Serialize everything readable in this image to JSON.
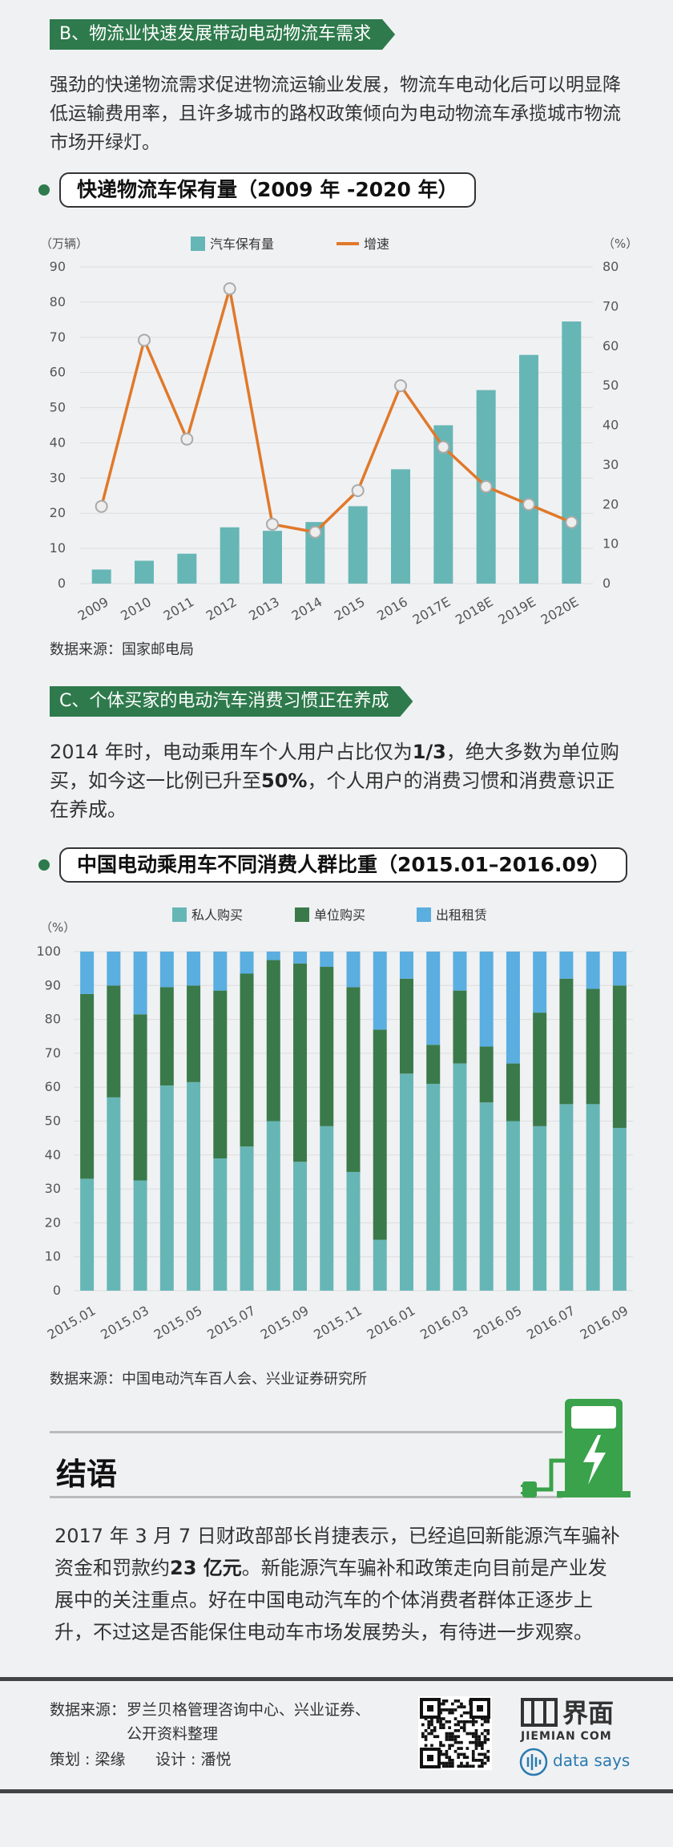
{
  "sectionB": {
    "tag": "B、物流业快速发展带动电动物流车需求",
    "para": "强劲的快递物流需求促进物流运输业发展，物流车电动化后可以明显降低运输费用率，且许多城市的路权政策倾向为电动物流车承揽城市物流市场开绿灯。"
  },
  "chart1": {
    "title": "快递物流车保有量（2009 年 -2020 年）",
    "left_unit": "（万辆）",
    "right_unit": "（%）",
    "source": "数据来源：国家邮电局"
  },
  "sectionC": {
    "tag": "C、个体买家的电动汽车消费习惯正在养成",
    "para_pre": "2014 年时，电动乘用车个人用户占比仅为",
    "para_b1": "1/3",
    "para_mid": "，绝大多数为单位购买，如今这一比例已升至",
    "para_b2": "50%",
    "para_post": "，个人用户的消费习惯和消费意识正在养成。"
  },
  "chart2": {
    "title": "中国电动乘用车不同消费人群比重（2015.01–2016.09）",
    "unit": "（%）",
    "source": "数据来源：中国电动汽车百人会、兴业证券研究所"
  },
  "conclusion": {
    "title": "结语",
    "para_pre": "2017 年 3 月 7 日财政部部长肖捷表示，已经追回新能源汽车骗补资金和罚款约",
    "para_b": "23 亿元",
    "para_post": "。新能源汽车骗补和政策走向目前是产业发展中的关注重点。好在中国电动汽车的个体消费者群体正逐步上升，不过这是否能保住电动车市场发展势头，有待进一步观察。"
  },
  "footer": {
    "source_label": "数据来源：",
    "source_line1": "罗兰贝格管理咨询中心、兴业证券、",
    "source_line2": "公开资料整理",
    "plan": "策划 : 梁缘",
    "design": "设计 : 潘悦",
    "brand_cn": "界面",
    "brand_en": "JIEMIAN COM",
    "datasays": "data says"
  },
  "colors": {
    "green_dark": "#2e7a4c",
    "teal": "#67b6b6",
    "orange": "#e0792a",
    "blue": "#5aaee0",
    "unit_green": "#3a7a4a"
  },
  "chart_data": [
    {
      "type": "bar+line",
      "categories": [
        "2009",
        "2010",
        "2011",
        "2012",
        "2013",
        "2014",
        "2015",
        "2016",
        "2017E",
        "2018E",
        "2019E",
        "2020E"
      ],
      "series": [
        {
          "name": "汽车保有量",
          "axis": "left",
          "type": "bar",
          "values": [
            4,
            6.5,
            8.5,
            16,
            15,
            17.5,
            22,
            32.5,
            45,
            55,
            65,
            74.5
          ]
        },
        {
          "name": "增速",
          "axis": "right",
          "type": "line",
          "values": [
            19.5,
            61.5,
            36.5,
            74.5,
            15,
            13,
            23.5,
            50,
            34.5,
            24.5,
            20,
            15.5
          ]
        }
      ],
      "yleft": {
        "min": 0,
        "max": 90,
        "ticks": [
          0,
          10,
          20,
          30,
          40,
          50,
          60,
          70,
          80,
          90
        ]
      },
      "yright": {
        "min": 0,
        "max": 80,
        "ticks": [
          0,
          10,
          20,
          30,
          40,
          50,
          60,
          70,
          80
        ]
      },
      "legend_placement": "top-center"
    },
    {
      "type": "stacked-bar",
      "categories": [
        "2015.01",
        "2015.02",
        "2015.03",
        "2015.04",
        "2015.05",
        "2015.06",
        "2015.07",
        "2015.08",
        "2015.09",
        "2015.10",
        "2015.11",
        "2015.12",
        "2016.01",
        "2016.02",
        "2016.03",
        "2016.04",
        "2016.05",
        "2016.06",
        "2016.07",
        "2016.08",
        "2016.09"
      ],
      "tick_labels": [
        "2015.01",
        "2015.03",
        "2015.05",
        "2015.07",
        "2015.09",
        "2015.11",
        "2016.01",
        "2016.03",
        "2016.05",
        "2016.07",
        "2016.09"
      ],
      "series": [
        {
          "name": "私人购买",
          "values": [
            33,
            57,
            32.5,
            60.5,
            61.5,
            39,
            42.5,
            50,
            38,
            48.5,
            35,
            15,
            64,
            61,
            67,
            55.5,
            50,
            48.5,
            55,
            55,
            48
          ]
        },
        {
          "name": "单位购买",
          "values": [
            54.5,
            33,
            49,
            29,
            28.5,
            49.5,
            51,
            47.5,
            58.5,
            47,
            54.5,
            62,
            28,
            11.5,
            21.5,
            16.5,
            17,
            33.5,
            37,
            34,
            42
          ]
        },
        {
          "name": "出租租赁",
          "values": [
            12.5,
            10,
            18.5,
            10.5,
            10,
            11.5,
            6.5,
            2.5,
            3.5,
            4.5,
            10.5,
            23,
            8,
            27.5,
            11.5,
            28,
            33,
            18,
            8,
            11,
            10
          ]
        }
      ],
      "ylim": [
        0,
        100
      ],
      "yticks": [
        0,
        10,
        20,
        30,
        40,
        50,
        60,
        70,
        80,
        90,
        100
      ],
      "legend_placement": "top-center"
    }
  ]
}
